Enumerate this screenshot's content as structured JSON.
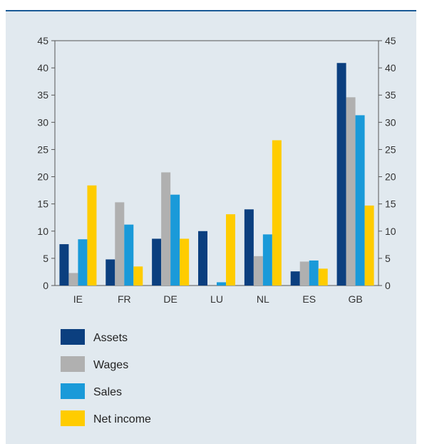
{
  "chart_data": {
    "type": "bar",
    "title": "",
    "xlabel": "",
    "ylabel": "",
    "categories": [
      "IE",
      "FR",
      "DE",
      "LU",
      "NL",
      "ES",
      "GB"
    ],
    "ylim": [
      0,
      45
    ],
    "yticks": [
      0,
      5,
      10,
      15,
      20,
      25,
      30,
      35,
      40,
      45
    ],
    "right_axis_mirrors_left": true,
    "grid": false,
    "legend_position": "bottom-left",
    "series": [
      {
        "name": "Assets",
        "color": "#0b3f7f",
        "values": [
          7.6,
          4.8,
          8.6,
          10.0,
          14.0,
          2.6,
          40.9
        ]
      },
      {
        "name": "Wages",
        "color": "#b0b0b0",
        "values": [
          2.3,
          15.3,
          20.8,
          0.0,
          5.4,
          4.4,
          34.6
        ]
      },
      {
        "name": "Sales",
        "color": "#1a9ad9",
        "values": [
          8.5,
          11.2,
          16.7,
          0.6,
          9.4,
          4.6,
          31.3
        ]
      },
      {
        "name": "Net income",
        "color": "#ffcc00",
        "values": [
          18.4,
          3.5,
          8.6,
          13.1,
          26.7,
          3.1,
          14.7
        ]
      }
    ]
  }
}
